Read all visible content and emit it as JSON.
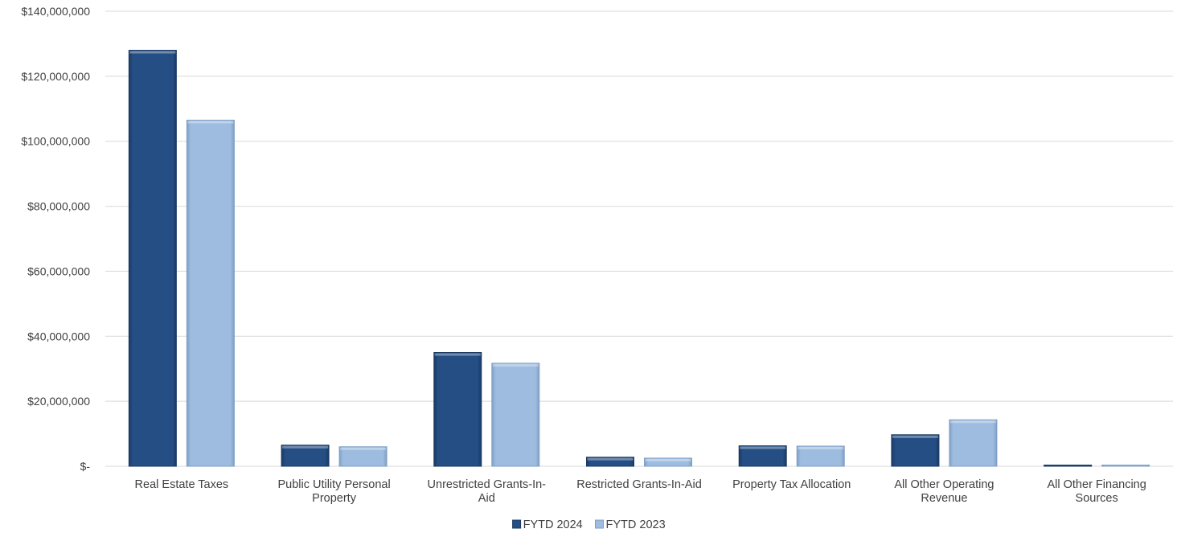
{
  "chart_data": {
    "type": "bar",
    "categories": [
      [
        "Real Estate Taxes"
      ],
      [
        "Public Utility Personal",
        "Property"
      ],
      [
        "Unrestricted Grants-In-",
        "Aid"
      ],
      [
        "Restricted Grants-In-Aid"
      ],
      [
        "Property Tax Allocation"
      ],
      [
        "All Other Operating",
        "Revenue"
      ],
      [
        "All Other Financing",
        "Sources"
      ]
    ],
    "series": [
      {
        "name": "FYTD 2024",
        "color": "#254e84",
        "edge_color": "#1a3a63",
        "values": [
          128000000,
          6500000,
          35000000,
          2800000,
          6300000,
          9700000,
          300000
        ]
      },
      {
        "name": "FYTD 2023",
        "color": "#9dbce0",
        "edge_color": "#7f9fc4",
        "values": [
          106500000,
          6000000,
          31700000,
          2500000,
          6200000,
          14300000,
          200000
        ]
      }
    ],
    "ylim": [
      0,
      140000000
    ],
    "yticks": [
      0,
      20000000,
      40000000,
      60000000,
      80000000,
      100000000,
      120000000,
      140000000
    ],
    "ytick_labels": [
      "$-",
      "$20,000,000",
      "$40,000,000",
      "$60,000,000",
      "$80,000,000",
      "$100,000,000",
      "$120,000,000",
      "$140,000,000"
    ],
    "title": "",
    "xlabel": "",
    "ylabel": "",
    "grid": true,
    "legend": "bottom-center"
  }
}
